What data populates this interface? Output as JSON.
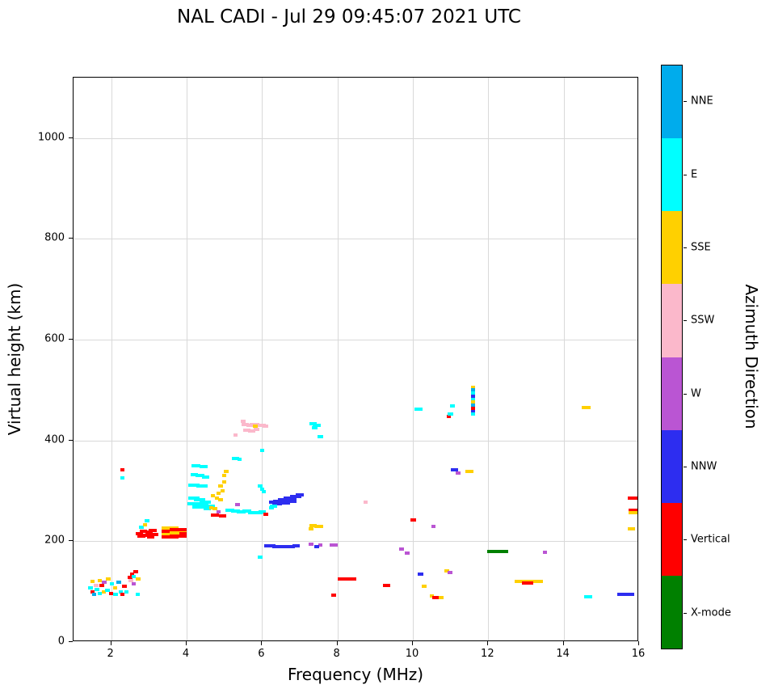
{
  "title": "NAL CADI - Jul 29 09:45:07 2021 UTC",
  "axes": {
    "x": {
      "label": "Frequency (MHz)",
      "min": 1,
      "max": 16,
      "ticks": [
        2,
        4,
        6,
        8,
        10,
        12,
        14,
        16
      ]
    },
    "y": {
      "label": "Virtual height (km)",
      "min": 0,
      "max": 1120,
      "ticks": [
        0,
        200,
        400,
        600,
        800,
        1000
      ]
    }
  },
  "colorbar": {
    "title": "Azimuth Direction"
  },
  "chart_data": {
    "type": "scatter",
    "title": "NAL CADI - Jul 29 09:45:07 2021 UTC",
    "xlabel": "Frequency (MHz)",
    "ylabel": "Virtual height (km)",
    "xlim": [
      1,
      16
    ],
    "ylim": [
      0,
      1120
    ],
    "grid": true,
    "legend_position": "right-colorbar",
    "categories": [
      {
        "label": "NNE",
        "color": "#00ACEC"
      },
      {
        "label": "E",
        "color": "#00FFFF"
      },
      {
        "label": "SSE",
        "color": "#FFD000"
      },
      {
        "label": "SSW",
        "color": "#FBB8CB"
      },
      {
        "label": "W",
        "color": "#BA55D3"
      },
      {
        "label": "NNW",
        "color": "#2D2DF0"
      },
      {
        "label": "Vertical",
        "color": "#FF0000"
      },
      {
        "label": "X-mode",
        "color": "#008000"
      }
    ],
    "point_format": "[frequency_MHz, virtual_height_km, category_index, optional_width_MHz]",
    "echoes": [
      [
        1.45,
        108,
        1
      ],
      [
        1.5,
        100,
        6
      ],
      [
        1.5,
        120,
        2
      ],
      [
        1.55,
        95,
        0
      ],
      [
        1.6,
        112,
        3
      ],
      [
        1.62,
        105,
        1
      ],
      [
        1.7,
        97,
        1
      ],
      [
        1.7,
        122,
        2
      ],
      [
        1.75,
        112,
        6
      ],
      [
        1.8,
        100,
        2
      ],
      [
        1.82,
        118,
        4
      ],
      [
        1.9,
        103,
        1
      ],
      [
        1.92,
        125,
        2
      ],
      [
        2.0,
        97,
        6
      ],
      [
        2.02,
        115,
        1
      ],
      [
        2.1,
        108,
        2
      ],
      [
        2.12,
        95,
        1
      ],
      [
        2.2,
        118,
        0
      ],
      [
        2.25,
        100,
        1
      ],
      [
        2.3,
        95,
        6
      ],
      [
        2.35,
        110,
        6
      ],
      [
        2.4,
        100,
        1
      ],
      [
        2.5,
        128,
        6
      ],
      [
        2.52,
        122,
        3
      ],
      [
        2.55,
        135,
        6
      ],
      [
        2.6,
        130,
        1
      ],
      [
        2.6,
        115,
        4
      ],
      [
        2.65,
        140,
        6
      ],
      [
        2.7,
        95,
        1
      ],
      [
        2.72,
        125,
        2
      ],
      [
        2.3,
        342,
        6
      ],
      [
        2.3,
        325,
        1
      ],
      [
        2.75,
        215,
        6,
        0.2
      ],
      [
        2.8,
        210,
        6,
        0.2
      ],
      [
        2.85,
        220,
        6,
        0.2
      ],
      [
        2.95,
        212,
        6,
        0.2
      ],
      [
        3.0,
        218,
        6,
        0.2
      ],
      [
        3.05,
        208,
        6,
        0.2
      ],
      [
        3.1,
        222,
        6,
        0.2
      ],
      [
        3.15,
        214,
        6,
        0.2
      ],
      [
        2.8,
        228,
        1
      ],
      [
        2.9,
        232,
        2
      ],
      [
        2.95,
        240,
        1
      ],
      [
        3.55,
        226,
        2,
        0.45
      ],
      [
        3.55,
        220,
        6,
        0.45
      ],
      [
        3.55,
        214,
        2,
        0.45
      ],
      [
        3.55,
        208,
        6,
        0.45
      ],
      [
        3.78,
        223,
        6,
        0.45
      ],
      [
        3.78,
        217,
        2,
        0.45
      ],
      [
        3.78,
        211,
        6,
        0.45
      ],
      [
        3.9,
        215,
        6,
        0.2
      ],
      [
        4.25,
        350,
        1,
        0.25
      ],
      [
        4.45,
        348,
        1,
        0.2
      ],
      [
        4.2,
        332,
        1,
        0.2
      ],
      [
        4.35,
        330,
        1,
        0.25
      ],
      [
        4.5,
        328,
        1,
        0.2
      ],
      [
        4.2,
        312,
        1,
        0.3
      ],
      [
        4.4,
        310,
        1,
        0.3
      ],
      [
        4.2,
        285,
        1,
        0.3
      ],
      [
        4.35,
        282,
        1,
        0.3
      ],
      [
        4.5,
        278,
        1,
        0.3
      ],
      [
        4.2,
        275,
        1,
        0.35
      ],
      [
        4.4,
        272,
        1,
        0.35
      ],
      [
        4.6,
        270,
        1,
        0.3
      ],
      [
        4.3,
        268,
        1,
        0.3
      ],
      [
        4.55,
        265,
        1,
        0.2
      ],
      [
        4.65,
        266,
        2
      ],
      [
        4.75,
        264,
        2
      ],
      [
        4.7,
        290,
        2
      ],
      [
        4.8,
        286,
        2
      ],
      [
        4.9,
        282,
        2
      ],
      [
        4.85,
        295,
        2
      ],
      [
        4.95,
        300,
        2
      ],
      [
        4.9,
        310,
        2
      ],
      [
        5.0,
        318,
        2
      ],
      [
        5.0,
        330,
        2
      ],
      [
        5.05,
        338,
        2
      ],
      [
        4.75,
        252,
        6,
        0.2
      ],
      [
        4.95,
        250,
        6,
        0.2
      ],
      [
        4.85,
        258,
        4
      ],
      [
        5.15,
        262,
        1,
        0.25
      ],
      [
        5.3,
        260,
        1,
        0.25
      ],
      [
        5.45,
        258,
        1,
        0.25
      ],
      [
        5.6,
        260,
        1,
        0.25
      ],
      [
        5.75,
        257,
        1,
        0.25
      ],
      [
        5.9,
        256,
        1,
        0.25
      ],
      [
        6.0,
        258,
        1,
        0.2
      ],
      [
        5.35,
        272,
        4
      ],
      [
        5.3,
        365,
        1,
        0.2
      ],
      [
        5.4,
        362,
        1
      ],
      [
        5.95,
        310,
        1
      ],
      [
        6.0,
        304,
        1
      ],
      [
        6.05,
        298,
        1
      ],
      [
        6.0,
        380,
        1
      ],
      [
        5.95,
        168,
        1
      ],
      [
        6.1,
        254,
        6
      ],
      [
        5.55,
        432,
        3,
        0.2
      ],
      [
        5.68,
        430,
        3,
        0.2
      ],
      [
        5.8,
        432,
        3,
        0.25
      ],
      [
        5.95,
        430,
        3,
        0.3
      ],
      [
        6.08,
        428,
        3,
        0.15
      ],
      [
        5.6,
        420,
        3,
        0.2
      ],
      [
        5.72,
        418,
        3,
        0.2
      ],
      [
        5.85,
        422,
        3,
        0.15
      ],
      [
        5.5,
        438,
        3
      ],
      [
        5.3,
        410,
        3
      ],
      [
        5.82,
        428,
        2
      ],
      [
        6.3,
        278,
        5,
        0.25
      ],
      [
        6.45,
        280,
        5,
        0.3
      ],
      [
        6.6,
        283,
        5,
        0.35
      ],
      [
        6.75,
        286,
        5,
        0.35
      ],
      [
        6.9,
        289,
        5,
        0.3
      ],
      [
        7.0,
        292,
        5,
        0.2
      ],
      [
        6.4,
        274,
        5,
        0.25
      ],
      [
        6.6,
        276,
        5,
        0.3
      ],
      [
        6.8,
        280,
        5,
        0.25
      ],
      [
        6.3,
        270,
        1,
        0.2
      ],
      [
        6.25,
        266,
        1
      ],
      [
        6.2,
        191,
        5,
        0.3
      ],
      [
        6.45,
        190,
        5,
        0.35
      ],
      [
        6.7,
        190,
        5,
        0.35
      ],
      [
        6.9,
        191,
        5,
        0.2
      ],
      [
        7.3,
        194,
        4
      ],
      [
        7.55,
        192,
        4
      ],
      [
        7.9,
        192,
        4,
        0.2
      ],
      [
        7.45,
        189,
        5
      ],
      [
        7.35,
        231,
        2,
        0.2
      ],
      [
        7.5,
        229,
        2,
        0.25
      ],
      [
        7.3,
        225,
        2
      ],
      [
        7.35,
        433,
        1,
        0.2
      ],
      [
        7.45,
        430,
        1,
        0.2
      ],
      [
        7.4,
        425,
        1,
        0.15
      ],
      [
        7.55,
        408,
        1,
        0.15
      ],
      [
        8.25,
        125,
        6,
        0.5
      ],
      [
        7.9,
        93,
        6
      ],
      [
        8.75,
        278,
        3
      ],
      [
        9.3,
        113,
        6,
        0.2
      ],
      [
        9.7,
        185,
        4
      ],
      [
        9.85,
        177,
        4
      ],
      [
        10.0,
        243,
        6,
        0.15
      ],
      [
        10.15,
        462,
        1,
        0.2
      ],
      [
        10.2,
        135,
        5,
        0.15
      ],
      [
        10.3,
        110,
        2
      ],
      [
        10.5,
        92,
        2
      ],
      [
        10.62,
        89,
        6,
        0.2
      ],
      [
        10.75,
        88,
        2
      ],
      [
        10.55,
        230,
        4
      ],
      [
        10.9,
        142,
        2
      ],
      [
        10.98,
        138,
        4
      ],
      [
        10.95,
        448,
        6
      ],
      [
        11.0,
        452,
        1,
        0.15
      ],
      [
        11.05,
        468,
        1
      ],
      [
        11.1,
        341,
        5,
        0.2
      ],
      [
        11.2,
        335,
        4
      ],
      [
        11.5,
        338,
        2,
        0.2
      ],
      [
        11.6,
        505,
        2
      ],
      [
        11.6,
        500,
        0
      ],
      [
        11.6,
        494,
        1
      ],
      [
        11.6,
        488,
        5
      ],
      [
        11.6,
        482,
        1
      ],
      [
        11.6,
        476,
        2
      ],
      [
        11.6,
        470,
        0
      ],
      [
        11.6,
        464,
        6
      ],
      [
        11.6,
        458,
        5
      ],
      [
        11.6,
        452,
        1
      ],
      [
        12.25,
        180,
        7,
        0.55
      ],
      [
        12.9,
        120,
        2,
        0.4
      ],
      [
        13.25,
        120,
        2,
        0.4
      ],
      [
        13.05,
        117,
        6,
        0.3
      ],
      [
        13.5,
        178,
        4
      ],
      [
        14.6,
        465,
        2,
        0.25
      ],
      [
        14.65,
        90,
        1,
        0.2
      ],
      [
        15.85,
        285,
        6,
        0.3
      ],
      [
        15.85,
        262,
        6,
        0.25
      ],
      [
        15.85,
        256,
        2,
        0.25
      ],
      [
        15.8,
        225,
        2,
        0.2
      ],
      [
        15.65,
        95,
        5,
        0.45
      ]
    ]
  }
}
